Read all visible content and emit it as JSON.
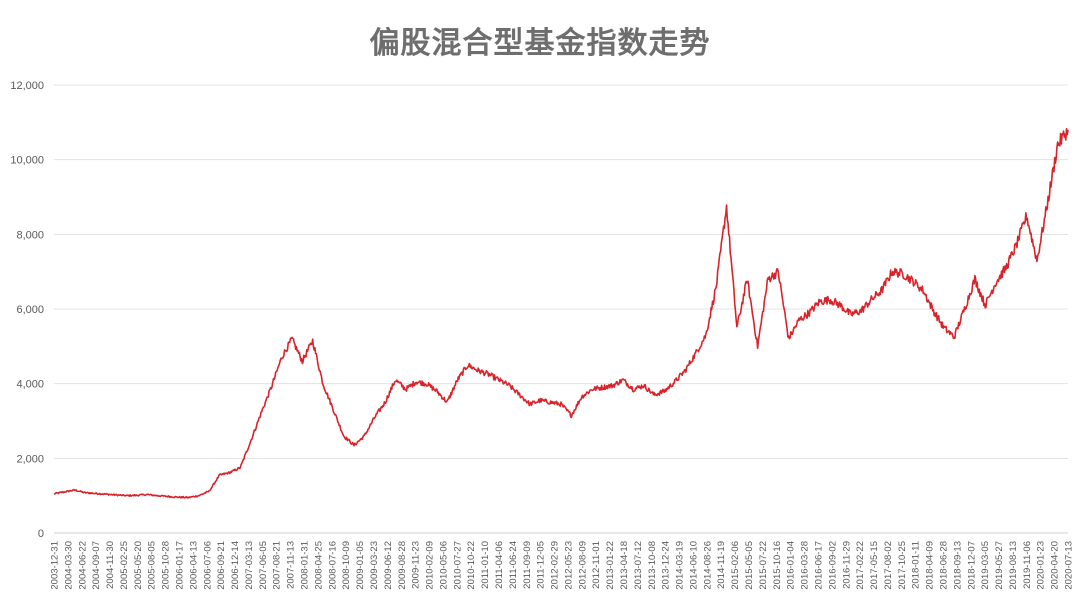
{
  "chart_data": {
    "type": "line",
    "title": "偏股混合型基金指数走势",
    "xlabel": "",
    "ylabel": "",
    "ylim": [
      0,
      12000
    ],
    "y_ticks": [
      0,
      2000,
      4000,
      6000,
      8000,
      10000,
      12000
    ],
    "y_tick_labels": [
      "0",
      "2,000",
      "4,000",
      "6,000",
      "8,000",
      "10,000",
      "12,000"
    ],
    "grid": true,
    "legend": "none",
    "color": "#d9232a",
    "x_tick_labels": [
      "2003-12-31",
      "2004-03-30",
      "2004-06-22",
      "2004-09-07",
      "2004-11-30",
      "2005-02-25",
      "2005-05-20",
      "2005-08-05",
      "2005-10-28",
      "2006-01-17",
      "2006-04-13",
      "2006-07-06",
      "2006-09-21",
      "2006-12-14",
      "2007-03-13",
      "2007-06-05",
      "2007-08-21",
      "2007-11-13",
      "2008-01-31",
      "2008-04-25",
      "2008-07-16",
      "2008-10-09",
      "2009-01-05",
      "2009-03-23",
      "2009-06-12",
      "2009-08-28",
      "2009-11-23",
      "2010-02-09",
      "2010-05-06",
      "2010-07-27",
      "2010-10-22",
      "2011-01-10",
      "2011-04-06",
      "2011-06-24",
      "2011-09-09",
      "2011-12-05",
      "2012-02-29",
      "2012-05-23",
      "2012-08-09",
      "2012-11-01",
      "2013-01-22",
      "2013-04-18",
      "2013-07-12",
      "2013-10-08",
      "2013-12-24",
      "2014-03-19",
      "2014-06-10",
      "2014-08-26",
      "2014-11-19",
      "2015-02-06",
      "2015-05-05",
      "2015-07-22",
      "2015-10-16",
      "2016-01-04",
      "2016-03-28",
      "2016-06-17",
      "2016-09-02",
      "2016-11-29",
      "2017-02-22",
      "2017-05-15",
      "2017-08-02",
      "2017-10-25",
      "2018-01-11",
      "2018-04-09",
      "2018-06-28",
      "2018-09-13",
      "2018-12-07",
      "2019-03-05",
      "2019-05-27",
      "2019-08-13",
      "2019-11-06",
      "2020-01-23",
      "2020-04-20",
      "2020-07-13"
    ],
    "series": [
      {
        "values": [
          1050,
          1100,
          1150,
          1080,
          1060,
          1040,
          1020,
          1000,
          1010,
          1030,
          1000,
          980,
          960,
          950,
          1000,
          1120,
          1550,
          1620,
          1750,
          2450,
          3200,
          3900,
          4700,
          5200,
          4600,
          5150,
          4000,
          3300,
          2600,
          2350,
          2600,
          3100,
          3500,
          4100,
          3850,
          4050,
          4000,
          3800,
          3500,
          4100,
          4500,
          4350,
          4250,
          4100,
          3950,
          3700,
          3450,
          3550,
          3500,
          3450,
          3150,
          3650,
          3850,
          3900,
          3950,
          4100,
          3850,
          3950,
          3700,
          3800,
          4050,
          4350,
          4800,
          5300,
          6600,
          8750,
          5500,
          6800,
          5000,
          6800,
          7000,
          5200,
          5700,
          5900,
          6200,
          6250,
          6100,
          5850,
          5950,
          6250,
          6500,
          7000,
          6950,
          6750,
          6500,
          5950,
          5500,
          5250,
          6000,
          6800,
          6100,
          6700,
          7100,
          7700,
          8500,
          7300,
          8800,
          10400,
          10800
        ]
      }
    ]
  }
}
